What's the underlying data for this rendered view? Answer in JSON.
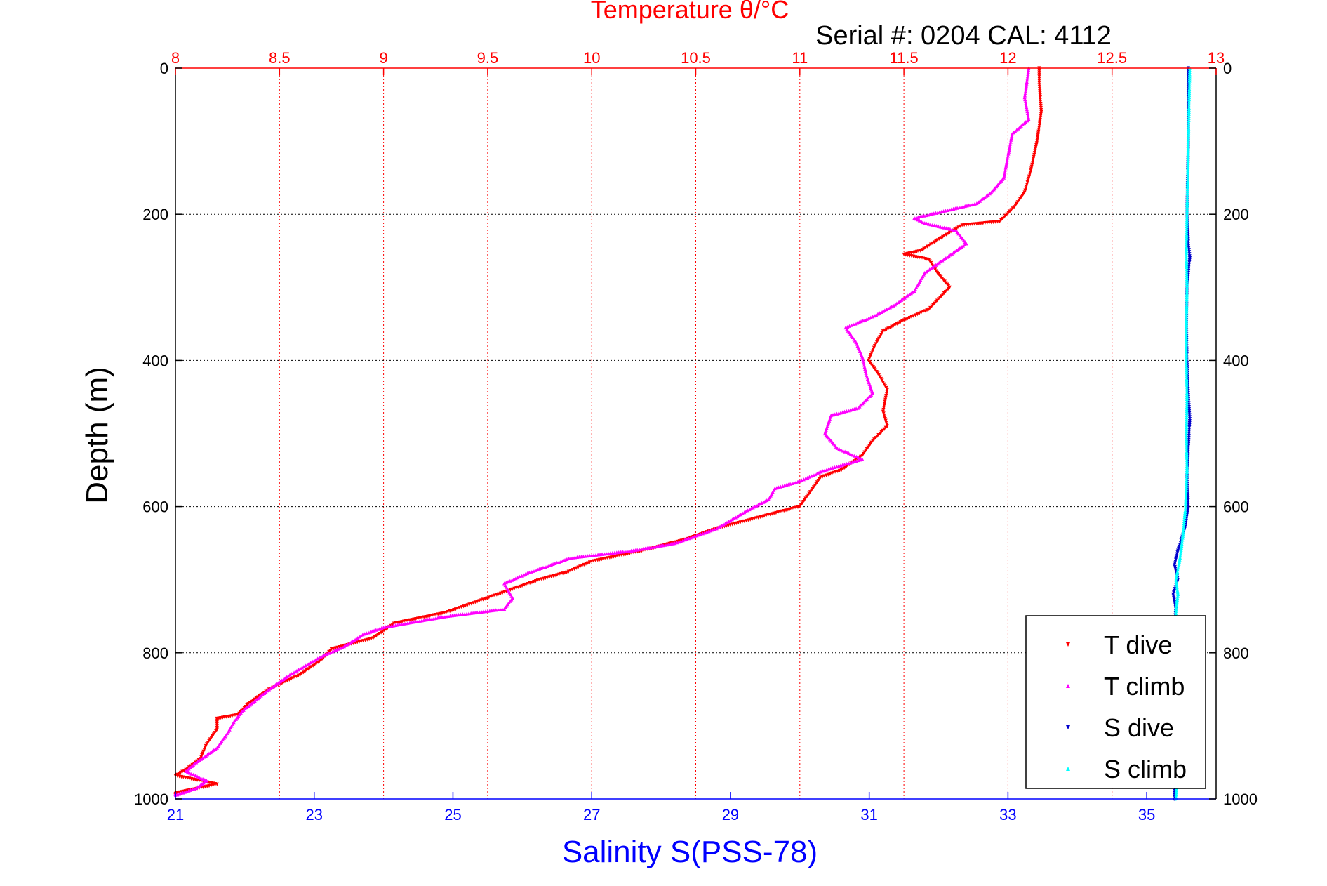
{
  "chart_data": {
    "type": "scatter",
    "title": "Temperature θ/°C",
    "subtitle": "Serial #: 0204  CAL: 4112",
    "ylabel": "Depth (m)",
    "xlabel": "Salinity S(PSS-78)",
    "top_axis": {
      "label": "Temperature θ/°C",
      "range": [
        8,
        13
      ],
      "ticks": [
        "8",
        "8.5",
        "9",
        "9.5",
        "10",
        "10.5",
        "11",
        "11.5",
        "12",
        "12.5",
        "13"
      ],
      "color": "#ff0000",
      "grid": true
    },
    "bottom_axis": {
      "label": "Salinity S(PSS-78)",
      "range": [
        21,
        36
      ],
      "ticks": [
        "21",
        "23",
        "25",
        "27",
        "29",
        "31",
        "33",
        "35"
      ],
      "color": "#0000ff"
    },
    "y_axis": {
      "label": "Depth (m)",
      "range": [
        0,
        1000
      ],
      "reversed": true,
      "ticks": [
        "0",
        "200",
        "400",
        "600",
        "800",
        "1000"
      ],
      "grid": true
    },
    "legend_position": "bottom-right",
    "series": [
      {
        "name": "T dive",
        "axis": "top",
        "color": "#ff0000",
        "marker": "triangle-down",
        "points": [
          [
            12.15,
            0
          ],
          [
            12.15,
            20
          ],
          [
            12.16,
            60
          ],
          [
            12.14,
            100
          ],
          [
            12.11,
            140
          ],
          [
            12.08,
            170
          ],
          [
            12.03,
            190
          ],
          [
            11.96,
            210
          ],
          [
            11.78,
            215
          ],
          [
            11.72,
            225
          ],
          [
            11.58,
            250
          ],
          [
            11.5,
            255
          ],
          [
            11.62,
            262
          ],
          [
            11.66,
            280
          ],
          [
            11.72,
            300
          ],
          [
            11.62,
            330
          ],
          [
            11.5,
            345
          ],
          [
            11.4,
            360
          ],
          [
            11.36,
            380
          ],
          [
            11.33,
            400
          ],
          [
            11.38,
            420
          ],
          [
            11.42,
            440
          ],
          [
            11.4,
            470
          ],
          [
            11.42,
            490
          ],
          [
            11.35,
            510
          ],
          [
            11.3,
            530
          ],
          [
            11.2,
            550
          ],
          [
            11.1,
            560
          ],
          [
            11.05,
            580
          ],
          [
            11.0,
            600
          ],
          [
            10.8,
            615
          ],
          [
            10.6,
            630
          ],
          [
            10.45,
            645
          ],
          [
            10.25,
            660
          ],
          [
            10.0,
            675
          ],
          [
            9.88,
            690
          ],
          [
            9.75,
            700
          ],
          [
            9.6,
            715
          ],
          [
            9.45,
            730
          ],
          [
            9.3,
            745
          ],
          [
            9.05,
            760
          ],
          [
            8.95,
            780
          ],
          [
            8.75,
            795
          ],
          [
            8.7,
            810
          ],
          [
            8.6,
            830
          ],
          [
            8.45,
            850
          ],
          [
            8.35,
            870
          ],
          [
            8.3,
            885
          ],
          [
            8.2,
            890
          ],
          [
            8.2,
            905
          ],
          [
            8.15,
            925
          ],
          [
            8.12,
            945
          ],
          [
            8.05,
            960
          ],
          [
            8.0,
            968
          ],
          [
            8.2,
            980
          ],
          [
            8.0,
            992
          ]
        ]
      },
      {
        "name": "T climb",
        "axis": "top",
        "color": "#ff00ff",
        "marker": "triangle-up",
        "points": [
          [
            12.1,
            0
          ],
          [
            12.08,
            40
          ],
          [
            12.1,
            70
          ],
          [
            12.02,
            90
          ],
          [
            12.0,
            120
          ],
          [
            11.98,
            150
          ],
          [
            11.92,
            170
          ],
          [
            11.85,
            185
          ],
          [
            11.7,
            195
          ],
          [
            11.55,
            205
          ],
          [
            11.6,
            212
          ],
          [
            11.75,
            222
          ],
          [
            11.8,
            240
          ],
          [
            11.7,
            260
          ],
          [
            11.6,
            280
          ],
          [
            11.55,
            305
          ],
          [
            11.45,
            325
          ],
          [
            11.35,
            340
          ],
          [
            11.22,
            355
          ],
          [
            11.27,
            375
          ],
          [
            11.3,
            395
          ],
          [
            11.32,
            420
          ],
          [
            11.35,
            445
          ],
          [
            11.28,
            465
          ],
          [
            11.15,
            475
          ],
          [
            11.12,
            500
          ],
          [
            11.18,
            520
          ],
          [
            11.3,
            535
          ],
          [
            11.12,
            550
          ],
          [
            11.0,
            565
          ],
          [
            10.88,
            575
          ],
          [
            10.85,
            590
          ],
          [
            10.75,
            605
          ],
          [
            10.6,
            630
          ],
          [
            10.4,
            650
          ],
          [
            10.2,
            660
          ],
          [
            9.9,
            670
          ],
          [
            9.7,
            690
          ],
          [
            9.58,
            705
          ],
          [
            9.62,
            725
          ],
          [
            9.58,
            740
          ],
          [
            9.3,
            750
          ],
          [
            9.0,
            765
          ],
          [
            8.9,
            775
          ],
          [
            8.82,
            790
          ],
          [
            8.7,
            805
          ],
          [
            8.55,
            830
          ],
          [
            8.45,
            850
          ],
          [
            8.32,
            880
          ],
          [
            8.28,
            895
          ],
          [
            8.25,
            910
          ],
          [
            8.2,
            930
          ],
          [
            8.1,
            950
          ],
          [
            8.05,
            962
          ],
          [
            8.15,
            975
          ],
          [
            8.1,
            985
          ],
          [
            8.0,
            995
          ]
        ]
      },
      {
        "name": "S dive",
        "axis": "bottom",
        "color": "#0000cc",
        "marker": "triangle-down",
        "points": [
          [
            35.6,
            0
          ],
          [
            35.6,
            100
          ],
          [
            35.58,
            200
          ],
          [
            35.6,
            240
          ],
          [
            35.62,
            260
          ],
          [
            35.58,
            300
          ],
          [
            35.57,
            350
          ],
          [
            35.58,
            400
          ],
          [
            35.6,
            450
          ],
          [
            35.62,
            480
          ],
          [
            35.6,
            520
          ],
          [
            35.58,
            560
          ],
          [
            35.6,
            600
          ],
          [
            35.55,
            630
          ],
          [
            35.45,
            660
          ],
          [
            35.4,
            680
          ],
          [
            35.45,
            700
          ],
          [
            35.38,
            720
          ],
          [
            35.42,
            740
          ],
          [
            35.4,
            760
          ],
          [
            35.38,
            800
          ],
          [
            35.42,
            850
          ],
          [
            35.4,
            900
          ],
          [
            35.42,
            950
          ],
          [
            35.4,
            1000
          ]
        ]
      },
      {
        "name": "S climb",
        "axis": "bottom",
        "color": "#00ffff",
        "marker": "triangle-up",
        "points": [
          [
            35.62,
            0
          ],
          [
            35.6,
            100
          ],
          [
            35.58,
            200
          ],
          [
            35.57,
            250
          ],
          [
            35.58,
            300
          ],
          [
            35.57,
            350
          ],
          [
            35.57,
            400
          ],
          [
            35.58,
            450
          ],
          [
            35.57,
            500
          ],
          [
            35.58,
            550
          ],
          [
            35.56,
            600
          ],
          [
            35.52,
            640
          ],
          [
            35.48,
            670
          ],
          [
            35.42,
            700
          ],
          [
            35.45,
            720
          ],
          [
            35.42,
            740
          ],
          [
            35.43,
            780
          ],
          [
            35.42,
            820
          ],
          [
            35.45,
            860
          ],
          [
            35.43,
            900
          ],
          [
            35.45,
            940
          ],
          [
            35.43,
            980
          ],
          [
            35.42,
            1000
          ]
        ]
      }
    ]
  }
}
